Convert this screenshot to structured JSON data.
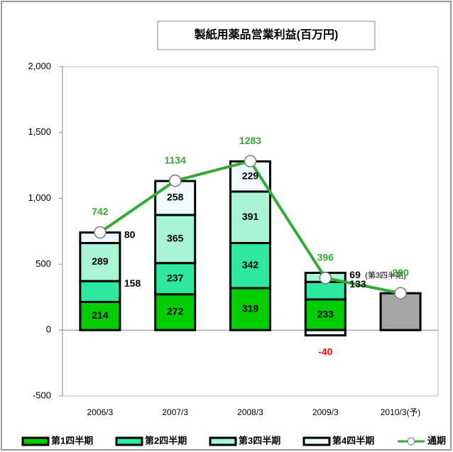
{
  "chart_data": {
    "type": "stacked_bar_line",
    "title": "製紙用薬品営業利益(百万円)",
    "categories": [
      "2006/3",
      "2007/3",
      "2008/3",
      "2009/3",
      "2010/3(予)"
    ],
    "series": [
      {
        "name": "第1四半期",
        "color": "#00cc00",
        "values": [
          214,
          272,
          319,
          233,
          null
        ]
      },
      {
        "name": "第2四半期",
        "color": "#2ee8a0",
        "values": [
          158,
          237,
          342,
          133,
          null
        ]
      },
      {
        "name": "第3四半期",
        "color": "#a8f5d6",
        "values": [
          289,
          365,
          391,
          69,
          null
        ]
      },
      {
        "name": "第4四半期",
        "color": "#f0fbfd",
        "values": [
          80,
          258,
          229,
          -40,
          null
        ]
      },
      {
        "color": "#a6a6a6",
        "values": [
          null,
          null,
          null,
          null,
          280
        ]
      },
      {
        "name": "通期",
        "type": "line",
        "color": "#33aa33",
        "values": [
          742,
          1134,
          1283,
          396,
          280
        ]
      }
    ],
    "annotations": [
      "(第3四半期)"
    ],
    "ylim": [
      -500,
      2000
    ],
    "yticks": [
      -500,
      0,
      500,
      {
        "value": 1000,
        "label": "1,000"
      },
      {
        "value": 1500,
        "label": "1,500"
      },
      {
        "value": 2000,
        "label": "2,000"
      }
    ],
    "grid": false
  }
}
